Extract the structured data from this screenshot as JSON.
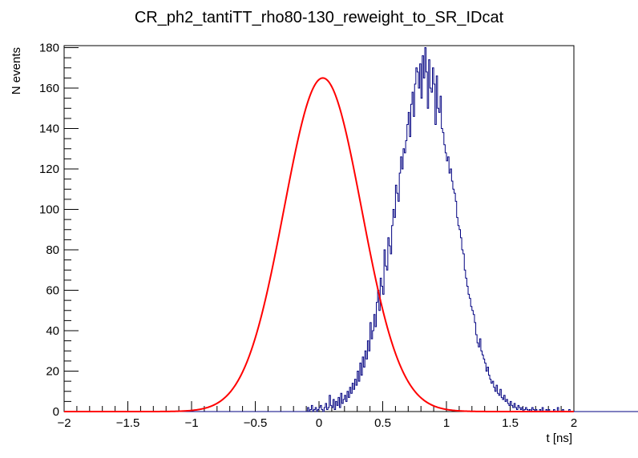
{
  "chart_data": {
    "type": "histogram",
    "title": "CR_ph2_tantiTT_rho80-130_reweight_to_SR_IDcat",
    "xlabel": "t [ns]",
    "ylabel": "N events",
    "xlim": [
      -2,
      2
    ],
    "ylim": [
      0,
      181
    ],
    "x_ticks": [
      "−2",
      "−1.5",
      "−1",
      "−0.5",
      "0",
      "0.5",
      "1",
      "1.5",
      "2"
    ],
    "y_ticks": [
      "0",
      "20",
      "40",
      "60",
      "80",
      "100",
      "120",
      "140",
      "160",
      "180"
    ],
    "grid": false,
    "legend": "none",
    "bin_width": 0.01,
    "series": [
      {
        "kind": "histogram",
        "color": "#000080",
        "bin_start": -2.0,
        "values": [
          0,
          0,
          0,
          0,
          0,
          0,
          0,
          0,
          0,
          0,
          0,
          0,
          0,
          0,
          0,
          0,
          0,
          0,
          0,
          0,
          0,
          0,
          0,
          0,
          0,
          0,
          0,
          0,
          0,
          0,
          0,
          0,
          0,
          0,
          0,
          0,
          0,
          0,
          0,
          0,
          0,
          0,
          0,
          0,
          0,
          0,
          0,
          0,
          0,
          0,
          0,
          0,
          0,
          0,
          0,
          0,
          0,
          0,
          0,
          0,
          0,
          0,
          0,
          0,
          0,
          0,
          0,
          0,
          0,
          0,
          0,
          0,
          0,
          0,
          0,
          0,
          0,
          0,
          0,
          0,
          0,
          0,
          0,
          0,
          0,
          0,
          0,
          0,
          0,
          0,
          0,
          0,
          0,
          0,
          0,
          0,
          0,
          0,
          0,
          0,
          0,
          0,
          0,
          0,
          0,
          0,
          0,
          0,
          0,
          0,
          0,
          0,
          0,
          0,
          0,
          0,
          0,
          0,
          0,
          0,
          0,
          0,
          0,
          0,
          0,
          0,
          0,
          0,
          0,
          0,
          0,
          0,
          0,
          0,
          0,
          0,
          0,
          0,
          0,
          0,
          0,
          0,
          0,
          0,
          0,
          0,
          0,
          0,
          0,
          0,
          0,
          0,
          0,
          0,
          0,
          0,
          0,
          0,
          0,
          0,
          0,
          0,
          0,
          0,
          0,
          0,
          0,
          0,
          0,
          0,
          0,
          0,
          0,
          0,
          0,
          0,
          0,
          0,
          0,
          0,
          0,
          0,
          0,
          0,
          0,
          0,
          0,
          0,
          0,
          0,
          0,
          2,
          0,
          1,
          3,
          0,
          1,
          2,
          0,
          1,
          2,
          3,
          1,
          0,
          2,
          4,
          1,
          2,
          8,
          3,
          2,
          6,
          1,
          5,
          3,
          7,
          2,
          9,
          4,
          6,
          8,
          5,
          10,
          7,
          12,
          9,
          14,
          11,
          16,
          13,
          20,
          15,
          24,
          18,
          27,
          22,
          30,
          26,
          35,
          30,
          44,
          36,
          40,
          48,
          42,
          54,
          60,
          50,
          66,
          62,
          58,
          80,
          72,
          70,
          86,
          82,
          78,
          92,
          100,
          96,
          112,
          108,
          104,
          118,
          126,
          120,
          130,
          128,
          134,
          142,
          148,
          136,
          152,
          158,
          146,
          162,
          170,
          168,
          160,
          172,
          155,
          176,
          165,
          180,
          168,
          150,
          174,
          160,
          158,
          170,
          162,
          142,
          166,
          150,
          148,
          156,
          140,
          138,
          132,
          128,
          124,
          126,
          118,
          120,
          114,
          110,
          108,
          104,
          96,
          92,
          90,
          86,
          80,
          78,
          70,
          66,
          62,
          58,
          56,
          52,
          50,
          48,
          44,
          38,
          34,
          32,
          36,
          30,
          28,
          26,
          24,
          20,
          22,
          18,
          16,
          14,
          15,
          12,
          10,
          13,
          9,
          8,
          11,
          7,
          6,
          8,
          5,
          6,
          4,
          3,
          5,
          3,
          2,
          4,
          2,
          1,
          3,
          2,
          1,
          2,
          0,
          1,
          2,
          1,
          0,
          1,
          0,
          2,
          1,
          0,
          1,
          0,
          0,
          1,
          0,
          2,
          0,
          0,
          1,
          0,
          1,
          0,
          0,
          0,
          1,
          0,
          0,
          2,
          0,
          0,
          0,
          1,
          0,
          0,
          0,
          0,
          1,
          0,
          0,
          0,
          0,
          0,
          0,
          0,
          0,
          0,
          0,
          0,
          0,
          0,
          0,
          0,
          0,
          0,
          0,
          0,
          0,
          0,
          0,
          0,
          0,
          0,
          0,
          0,
          0,
          0,
          0,
          0,
          0,
          0,
          0,
          0,
          0,
          0,
          0,
          0,
          0,
          0,
          0,
          0,
          0,
          0,
          0,
          0,
          0,
          0,
          0,
          0,
          0,
          0,
          0,
          0,
          0,
          0,
          0,
          0,
          0,
          0,
          0,
          0,
          0,
          0,
          0,
          0,
          0,
          0,
          0
        ]
      },
      {
        "kind": "fit",
        "color": "#ff0000",
        "function": "gaussian",
        "amplitude": 165,
        "mean": 0.03,
        "sigma": 0.305
      }
    ]
  }
}
